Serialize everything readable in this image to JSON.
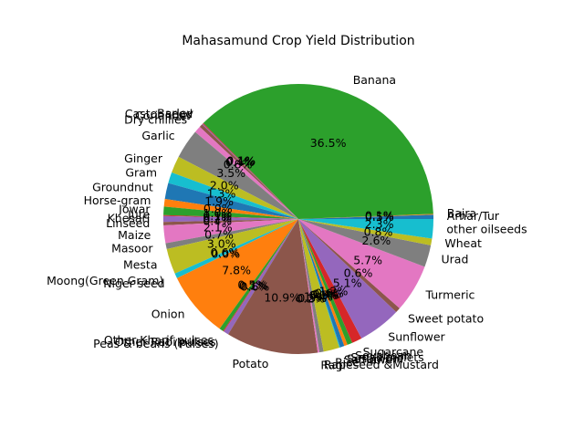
{
  "chart_data": {
    "type": "pie",
    "title": "Mahasamund Crop Yield Distribution",
    "start_angle_deg": 0,
    "direction": "counterclockwise",
    "percent_format": "%1.1f%%",
    "slices": [
      {
        "label": "Arhar/Tur",
        "value": 0.5,
        "color": "#1f77b4"
      },
      {
        "label": "Bajra",
        "value": 0.1,
        "color": "#ff7f0e"
      },
      {
        "label": "Banana",
        "value": 36.5,
        "color": "#2ca02c"
      },
      {
        "label": "Barley",
        "value": 0.1,
        "color": "#d62728"
      },
      {
        "label": "Castor seed",
        "value": 0.1,
        "color": "#9467bd"
      },
      {
        "label": "Coriander",
        "value": 0.4,
        "color": "#8c564b"
      },
      {
        "label": "Dry chillies",
        "value": 0.8,
        "color": "#e377c2"
      },
      {
        "label": "Garlic",
        "value": 3.5,
        "color": "#7f7f7f"
      },
      {
        "label": "Ginger",
        "value": 2.0,
        "color": "#bcbd22"
      },
      {
        "label": "Gram",
        "value": 1.3,
        "color": "#17becf"
      },
      {
        "label": "Groundnut",
        "value": 1.9,
        "color": "#1f77b4"
      },
      {
        "label": "Horse-gram",
        "value": 0.9,
        "color": "#ff7f0e"
      },
      {
        "label": "Jowar",
        "value": 1.0,
        "color": "#2ca02c"
      },
      {
        "label": "Jute",
        "value": 0.1,
        "color": "#d62728"
      },
      {
        "label": "Khesari",
        "value": 0.7,
        "color": "#9467bd"
      },
      {
        "label": "Linseed",
        "value": 0.4,
        "color": "#8c564b"
      },
      {
        "label": "Maize",
        "value": 2.1,
        "color": "#e377c2"
      },
      {
        "label": "Masoor",
        "value": 0.7,
        "color": "#7f7f7f"
      },
      {
        "label": "Mesta",
        "value": 3.0,
        "color": "#bcbd22"
      },
      {
        "label": "Moong(Green Gram)",
        "value": 0.6,
        "color": "#17becf"
      },
      {
        "label": "Niger seed",
        "value": 0.0,
        "color": "#1f77b4"
      },
      {
        "label": "Onion",
        "value": 7.8,
        "color": "#ff7f0e"
      },
      {
        "label": "Other Kharif pulses",
        "value": 0.5,
        "color": "#2ca02c"
      },
      {
        "label": "Other Rabi pulses",
        "value": 0.1,
        "color": "#d62728"
      },
      {
        "label": "Peas & beans (Pulses)",
        "value": 0.6,
        "color": "#9467bd"
      },
      {
        "label": "Potato",
        "value": 10.9,
        "color": "#8c564b"
      },
      {
        "label": "Ragi",
        "value": 0.2,
        "color": "#e377c2"
      },
      {
        "label": "Rapeseed &Mustard",
        "value": 0.5,
        "color": "#7f7f7f"
      },
      {
        "label": "Rice",
        "value": 1.9,
        "color": "#bcbd22"
      },
      {
        "label": "Safflower",
        "value": 0.1,
        "color": "#17becf"
      },
      {
        "label": "Sesamum",
        "value": 0.5,
        "color": "#1f77b4"
      },
      {
        "label": "Small millets",
        "value": 0.4,
        "color": "#ff7f0e"
      },
      {
        "label": "Soyabean",
        "value": 0.6,
        "color": "#2ca02c"
      },
      {
        "label": "Sugarcane",
        "value": 1.2,
        "color": "#d62728"
      },
      {
        "label": "Sunflower",
        "value": 5.1,
        "color": "#9467bd"
      },
      {
        "label": "Sweet potato",
        "value": 0.6,
        "color": "#8c564b"
      },
      {
        "label": "Turmeric",
        "value": 5.7,
        "color": "#e377c2"
      },
      {
        "label": "Urad",
        "value": 2.6,
        "color": "#7f7f7f"
      },
      {
        "label": "Wheat",
        "value": 0.8,
        "color": "#bcbd22"
      },
      {
        "label": "other oilseeds",
        "value": 2.3,
        "color": "#17becf"
      }
    ]
  }
}
